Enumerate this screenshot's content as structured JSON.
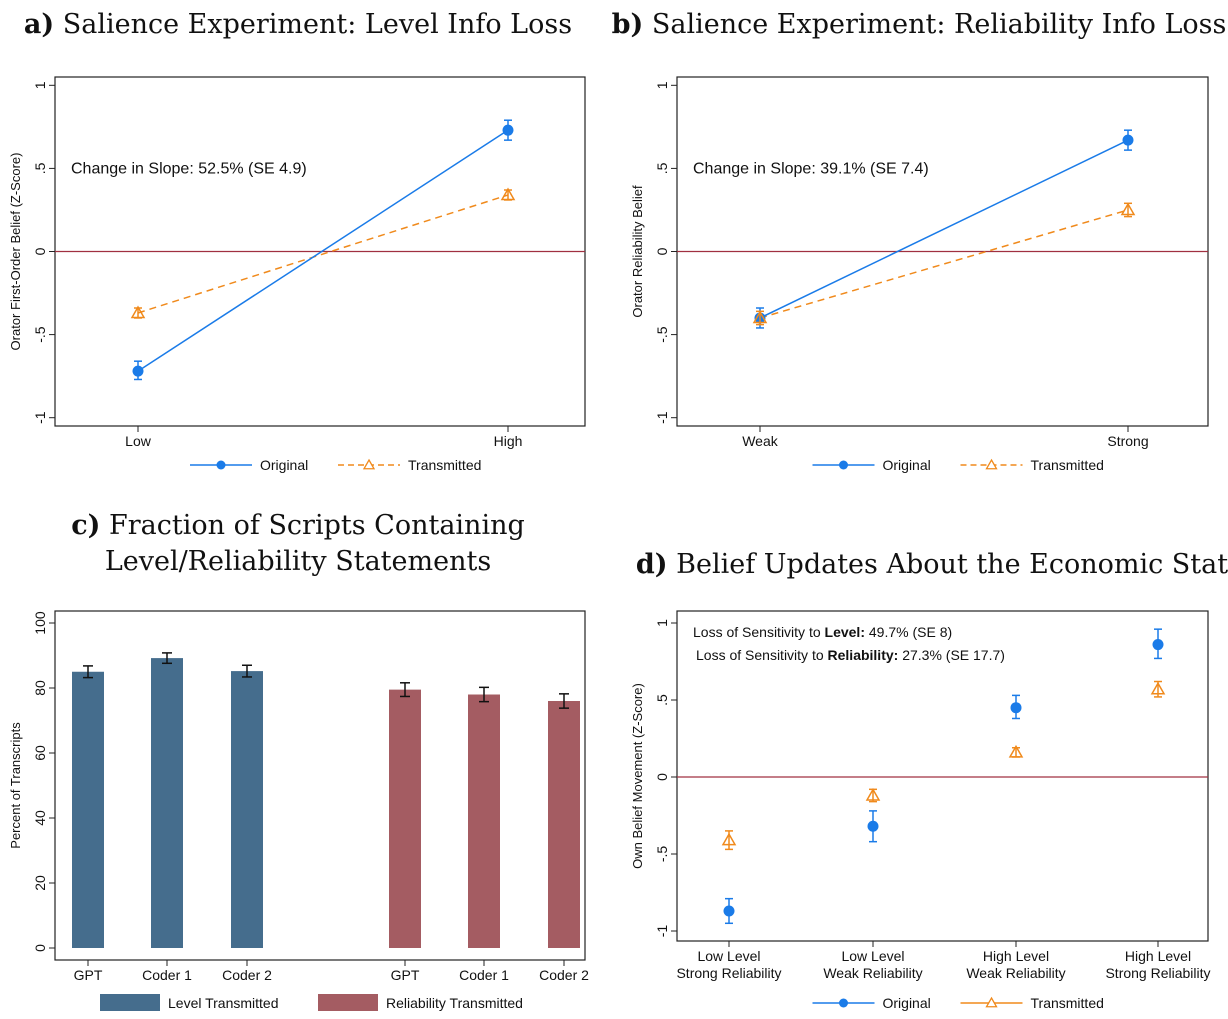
{
  "colors": {
    "original": "#1a7be8",
    "transmitted": "#f08a1c",
    "zero_line": "#a03040",
    "level_bar": "#456d8d",
    "reliability_bar": "#a45c62",
    "frame": "#222222"
  },
  "chart_data": [
    {
      "id": "a",
      "type": "line",
      "title_letter": "a)",
      "title": "Salience Experiment: Level Info Loss",
      "ylabel": "Orator First-Order Belief (Z-Score)",
      "xlabel": "",
      "categories": [
        "Low",
        "High"
      ],
      "ylim": [
        -1.05,
        1.05
      ],
      "yticks": [
        -1,
        -0.5,
        0,
        0.5,
        1
      ],
      "ytick_labels": [
        "-1",
        "-.5",
        "0",
        ".5",
        "1"
      ],
      "reference_line": 0,
      "annotation": "Change in Slope: 52.5% (SE 4.9)",
      "series": [
        {
          "name": "Original",
          "values": [
            -0.72,
            0.73
          ],
          "ci_low": [
            -0.77,
            0.67
          ],
          "ci_high": [
            -0.66,
            0.79
          ]
        },
        {
          "name": "Transmitted",
          "values": [
            -0.37,
            0.34
          ],
          "ci_low": [
            -0.4,
            0.31
          ],
          "ci_high": [
            -0.34,
            0.37
          ]
        }
      ],
      "legend": [
        "Original",
        "Transmitted"
      ],
      "legend_position": "bottom",
      "grid": false
    },
    {
      "id": "b",
      "type": "line",
      "title_letter": "b)",
      "title": "Salience Experiment: Reliability Info Loss",
      "ylabel": "Orator Reliability Belief",
      "xlabel": "",
      "categories": [
        "Weak",
        "Strong"
      ],
      "ylim": [
        -1.05,
        1.05
      ],
      "yticks": [
        -1,
        -0.5,
        0,
        0.5,
        1
      ],
      "ytick_labels": [
        "-1",
        "-.5",
        "0",
        ".5",
        "1"
      ],
      "reference_line": 0,
      "annotation": "Change in Slope: 39.1% (SE 7.4)",
      "series": [
        {
          "name": "Original",
          "values": [
            -0.4,
            0.67
          ],
          "ci_low": [
            -0.46,
            0.61
          ],
          "ci_high": [
            -0.34,
            0.73
          ]
        },
        {
          "name": "Transmitted",
          "values": [
            -0.4,
            0.25
          ],
          "ci_low": [
            -0.44,
            0.21
          ],
          "ci_high": [
            -0.36,
            0.29
          ]
        }
      ],
      "legend": [
        "Original",
        "Transmitted"
      ],
      "legend_position": "bottom",
      "grid": false
    },
    {
      "id": "c",
      "type": "bar",
      "title_letter": "c)",
      "title": "Fraction of Scripts Containing",
      "title_line2": "Level/Reliability Statements",
      "ylabel": "Percent of Transcripts",
      "xlabel": "",
      "ylim": [
        0,
        100
      ],
      "yticks": [
        0,
        20,
        40,
        60,
        80,
        100
      ],
      "ytick_labels": [
        "0",
        "20",
        "40",
        "60",
        "80",
        "100"
      ],
      "groups": [
        {
          "name": "Level Transmitted",
          "categories": [
            "GPT",
            "Coder 1",
            "Coder 2"
          ],
          "values": [
            85,
            89.2,
            85.2
          ],
          "ci_low": [
            83.2,
            87.6,
            83.4
          ],
          "ci_high": [
            86.8,
            90.8,
            87.0
          ]
        },
        {
          "name": "Reliability Transmitted",
          "categories": [
            "GPT",
            "Coder 1",
            "Coder 2"
          ],
          "values": [
            79.5,
            78,
            76
          ],
          "ci_low": [
            77.4,
            75.8,
            73.8
          ],
          "ci_high": [
            81.6,
            80.2,
            78.2
          ]
        }
      ],
      "legend": [
        "Level Transmitted",
        "Reliability Transmitted"
      ],
      "legend_position": "bottom",
      "grid": false
    },
    {
      "id": "d",
      "type": "scatter",
      "title_letter": "d)",
      "title": "Belief Updates About the Economic State",
      "ylabel": "Own Belief Movement (Z-Score)",
      "xlabel": "",
      "categories": [
        [
          "Low Level",
          "Strong Reliability"
        ],
        [
          "Low Level",
          "Weak Reliability"
        ],
        [
          "High Level",
          "Weak Reliability"
        ],
        [
          "High Level",
          "Strong Reliability"
        ]
      ],
      "ylim": [
        -1.05,
        1.05
      ],
      "yticks": [
        -1,
        -0.5,
        0,
        0.5,
        1
      ],
      "ytick_labels": [
        "-1",
        "-.5",
        "0",
        ".5",
        "1"
      ],
      "reference_line": 0,
      "annotation_lines": [
        {
          "prefix": "Loss of Sensitivity to ",
          "bold": "Level:",
          "suffix": " 49.7% (SE 8)"
        },
        {
          "prefix": "Loss of Sensitivity to ",
          "bold": "Reliability:",
          "suffix": " 27.3% (SE 17.7)"
        }
      ],
      "series": [
        {
          "name": "Original",
          "values": [
            -0.87,
            -0.32,
            0.45,
            0.86
          ],
          "ci_low": [
            -0.95,
            -0.42,
            0.38,
            0.77
          ],
          "ci_high": [
            -0.79,
            -0.22,
            0.53,
            0.96
          ]
        },
        {
          "name": "Transmitted",
          "values": [
            -0.41,
            -0.12,
            0.16,
            0.57
          ],
          "ci_low": [
            -0.47,
            -0.16,
            0.13,
            0.52
          ],
          "ci_high": [
            -0.35,
            -0.08,
            0.19,
            0.62
          ]
        }
      ],
      "legend": [
        "Original",
        "Transmitted"
      ],
      "legend_position": "bottom",
      "grid": false
    }
  ]
}
